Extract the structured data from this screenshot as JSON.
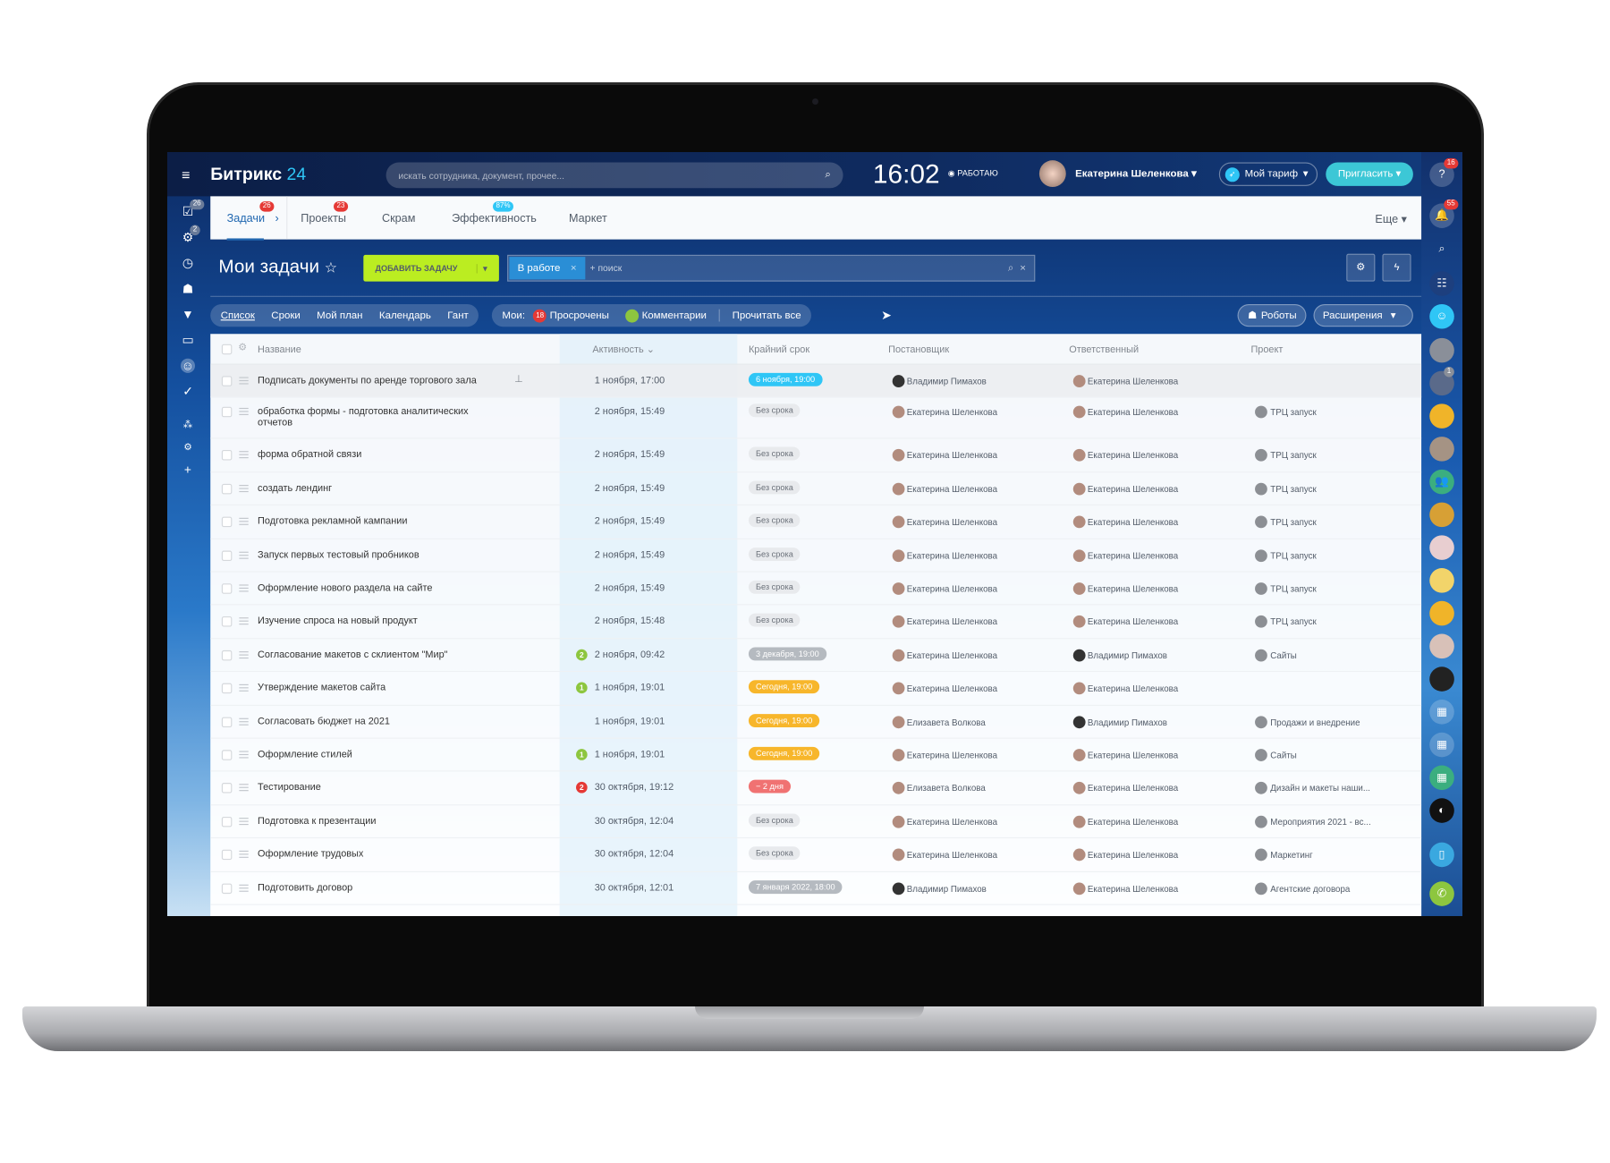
{
  "app": {
    "logo_main": "Битрикс",
    "logo_num": "24",
    "search_placeholder": "искать сотрудника, документ, прочее...",
    "clock": "16:02",
    "work_status": "РАБОТАЮ",
    "user_name": "Екатерина Шеленкова",
    "tariff": "Мой тариф",
    "invite": "Пригласить"
  },
  "left_rail": {
    "badges": [
      "26",
      "2"
    ]
  },
  "right_rail": {
    "badges": [
      "16",
      "55",
      "1"
    ]
  },
  "tabs": [
    {
      "label": "Задачи",
      "badge": "26",
      "active": true
    },
    {
      "label": "Проекты",
      "badge": "23"
    },
    {
      "label": "Скрам"
    },
    {
      "label": "Эффективность",
      "badge": "87%"
    },
    {
      "label": "Маркет"
    }
  ],
  "tabs_more": "Еще",
  "page": {
    "title": "Мои задачи",
    "add_button": "ДОБАВИТЬ ЗАДАЧУ",
    "filter_chip": "В работе",
    "filter_placeholder": "+ поиск"
  },
  "views": [
    "Список",
    "Сроки",
    "Мой план",
    "Календарь",
    "Гант"
  ],
  "counters": {
    "label": "Мои:",
    "overdue_count": "18",
    "overdue": "Просрочены",
    "comments": "Комментарии",
    "read_all": "Прочитать все"
  },
  "robots": "Роботы",
  "extensions": "Расширения",
  "columns": {
    "name": "Название",
    "activity": "Активность",
    "deadline": "Крайний срок",
    "creator": "Постановщик",
    "responsible": "Ответственный",
    "project": "Проект"
  },
  "colors": {
    "blue": "#2fc6f6",
    "gray": "#b5bac0",
    "nodl": "#e8eaed",
    "orange": "#f7b62b",
    "red": "#f07272",
    "green": "#8dc63f",
    "redc": "#e53935",
    "accent": "#bbed21"
  },
  "rows": [
    {
      "name": "Подписать документы по аренде торгового зала",
      "activity": "1 ноября, 17:00",
      "deadline": "6 ноября, 19:00",
      "dl": "blue",
      "creator": "Владимир Пимахов",
      "responsible": "Екатерина Шеленкова",
      "project": "",
      "pinned": true
    },
    {
      "name": "обработка формы - подготовка аналитических отчетов",
      "activity": "2 ноября, 15:49",
      "deadline": "Без срока",
      "dl": "nodl",
      "creator": "Екатерина Шеленкова",
      "responsible": "Екатерина Шеленкова",
      "project": "ТРЦ запуск"
    },
    {
      "name": "форма обратной связи",
      "activity": "2 ноября, 15:49",
      "deadline": "Без срока",
      "dl": "nodl",
      "creator": "Екатерина Шеленкова",
      "responsible": "Екатерина Шеленкова",
      "project": "ТРЦ запуск"
    },
    {
      "name": "создать лендинг",
      "activity": "2 ноября, 15:49",
      "deadline": "Без срока",
      "dl": "nodl",
      "creator": "Екатерина Шеленкова",
      "responsible": "Екатерина Шеленкова",
      "project": "ТРЦ запуск"
    },
    {
      "name": "Подготовка рекламной кампании",
      "activity": "2 ноября, 15:49",
      "deadline": "Без срока",
      "dl": "nodl",
      "creator": "Екатерина Шеленкова",
      "responsible": "Екатерина Шеленкова",
      "project": "ТРЦ запуск"
    },
    {
      "name": "Запуск первых тестовый пробников",
      "activity": "2 ноября, 15:49",
      "deadline": "Без срока",
      "dl": "nodl",
      "creator": "Екатерина Шеленкова",
      "responsible": "Екатерина Шеленкова",
      "project": "ТРЦ запуск"
    },
    {
      "name": "Оформление нового раздела на сайте",
      "activity": "2 ноября, 15:49",
      "deadline": "Без срока",
      "dl": "nodl",
      "creator": "Екатерина Шеленкова",
      "responsible": "Екатерина Шеленкова",
      "project": "ТРЦ запуск"
    },
    {
      "name": "Изучение спроса на новый продукт",
      "activity": "2 ноября, 15:48",
      "deadline": "Без срока",
      "dl": "nodl",
      "creator": "Екатерина Шеленкова",
      "responsible": "Екатерина Шеленкова",
      "project": "ТРЦ запуск"
    },
    {
      "name": "Согласование макетов с склиентом \"Мир\"",
      "count": "2",
      "count_color": "green",
      "activity": "2 ноября, 09:42",
      "deadline": "3 декабря, 19:00",
      "dl": "gray",
      "creator": "Екатерина Шеленкова",
      "responsible": "Владимир Пимахов",
      "project": "Сайты"
    },
    {
      "name": "Утверждение макетов сайта",
      "count": "1",
      "count_color": "green",
      "activity": "1 ноября, 19:01",
      "deadline": "Сегодня, 19:00",
      "dl": "orange",
      "creator": "Екатерина Шеленкова",
      "responsible": "Екатерина Шеленкова",
      "project": ""
    },
    {
      "name": "Согласовать бюджет на 2021",
      "activity": "1 ноября, 19:01",
      "deadline": "Сегодня, 19:00",
      "dl": "orange",
      "creator": "Елизавета Волкова",
      "responsible": "Владимир Пимахов",
      "project": "Продажи и внедрение"
    },
    {
      "name": "Оформление стилей",
      "count": "1",
      "count_color": "green",
      "activity": "1 ноября, 19:01",
      "deadline": "Сегодня, 19:00",
      "dl": "orange",
      "creator": "Екатерина Шеленкова",
      "responsible": "Екатерина Шеленкова",
      "project": "Сайты"
    },
    {
      "name": "Тестирование",
      "count": "2",
      "count_color": "redc",
      "activity": "30 октября, 19:12",
      "deadline": "− 2 дня",
      "dl": "red",
      "creator": "Елизавета Волкова",
      "responsible": "Екатерина Шеленкова",
      "project": "Дизайн и макеты наши..."
    },
    {
      "name": "Подготовка к презентации",
      "activity": "30 октября, 12:04",
      "deadline": "Без срока",
      "dl": "nodl",
      "creator": "Екатерина Шеленкова",
      "responsible": "Екатерина Шеленкова",
      "project": "Мероприятия 2021 - вс..."
    },
    {
      "name": "Оформление трудовых",
      "activity": "30 октября, 12:04",
      "deadline": "Без срока",
      "dl": "nodl",
      "creator": "Екатерина Шеленкова",
      "responsible": "Екатерина Шеленкова",
      "project": "Маркетинг"
    },
    {
      "name": "Подготовить договор",
      "activity": "30 октября, 12:01",
      "deadline": "7 января 2022, 18:00",
      "dl": "gray",
      "creator": "Владимир Пимахов",
      "responsible": "Екатерина Шеленкова",
      "project": "Агентские договора"
    }
  ]
}
